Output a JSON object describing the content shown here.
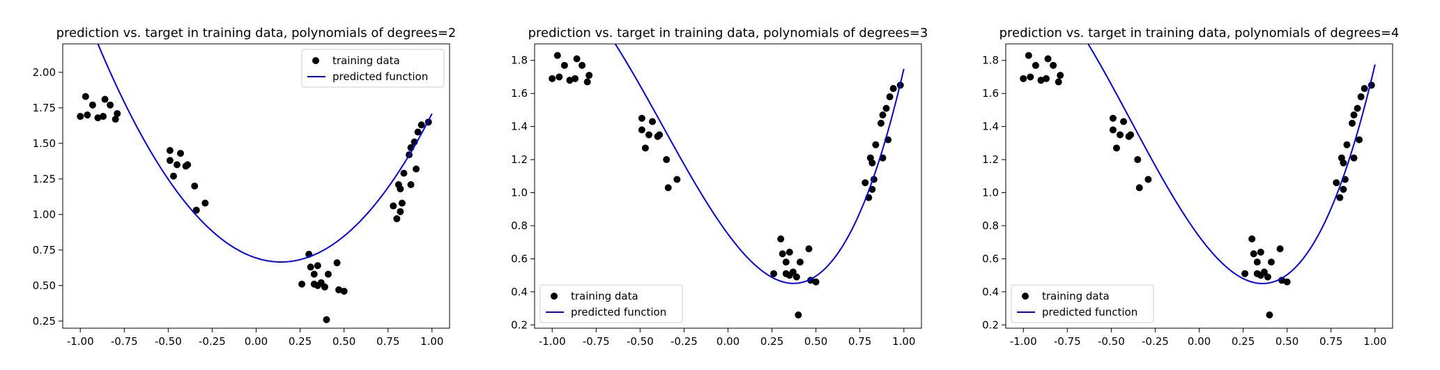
{
  "figure": {
    "colors": {
      "points": "#000000",
      "curve": "#0000ff",
      "axes": "#000000",
      "legend_frame": "#cccccc"
    }
  },
  "chart_data": [
    {
      "type": "scatter",
      "title": "prediction vs. target in training data,  polynomials of degrees=2",
      "xlabel": "",
      "ylabel": "",
      "xlim": [
        -1.1,
        1.1
      ],
      "ylim": [
        0.2,
        2.2
      ],
      "xticks": [
        "-1.00",
        "-0.75",
        "-0.50",
        "-0.25",
        "0.00",
        "0.25",
        "0.50",
        "0.75",
        "1.00"
      ],
      "xtick_values": [
        -1.0,
        -0.75,
        -0.5,
        -0.25,
        0.0,
        0.25,
        0.5,
        0.75,
        1.0
      ],
      "yticks": [
        "0.25",
        "0.50",
        "0.75",
        "1.00",
        "1.25",
        "1.50",
        "1.75",
        "2.00"
      ],
      "ytick_values": [
        0.25,
        0.5,
        0.75,
        1.0,
        1.25,
        1.5,
        1.75,
        2.0
      ],
      "legend_position": "upper right",
      "series": [
        {
          "name": "training data",
          "kind": "scatter",
          "points": [
            [
              -1.0,
              1.69
            ],
            [
              -0.97,
              1.83
            ],
            [
              -0.96,
              1.7
            ],
            [
              -0.93,
              1.77
            ],
            [
              -0.9,
              1.68
            ],
            [
              -0.87,
              1.69
            ],
            [
              -0.86,
              1.81
            ],
            [
              -0.83,
              1.77
            ],
            [
              -0.8,
              1.67
            ],
            [
              -0.79,
              1.71
            ],
            [
              -0.49,
              1.45
            ],
            [
              -0.49,
              1.38
            ],
            [
              -0.47,
              1.27
            ],
            [
              -0.45,
              1.35
            ],
            [
              -0.43,
              1.43
            ],
            [
              -0.4,
              1.34
            ],
            [
              -0.39,
              1.35
            ],
            [
              -0.35,
              1.2
            ],
            [
              -0.34,
              1.03
            ],
            [
              -0.29,
              1.08
            ],
            [
              0.26,
              0.51
            ],
            [
              0.3,
              0.72
            ],
            [
              0.31,
              0.63
            ],
            [
              0.33,
              0.58
            ],
            [
              0.33,
              0.51
            ],
            [
              0.35,
              0.5
            ],
            [
              0.35,
              0.64
            ],
            [
              0.37,
              0.52
            ],
            [
              0.39,
              0.49
            ],
            [
              0.4,
              0.26
            ],
            [
              0.41,
              0.58
            ],
            [
              0.46,
              0.66
            ],
            [
              0.47,
              0.47
            ],
            [
              0.5,
              0.46
            ],
            [
              0.78,
              1.06
            ],
            [
              0.8,
              0.97
            ],
            [
              0.81,
              1.21
            ],
            [
              0.82,
              1.02
            ],
            [
              0.82,
              1.18
            ],
            [
              0.83,
              1.08
            ],
            [
              0.84,
              1.29
            ],
            [
              0.87,
              1.42
            ],
            [
              0.88,
              1.21
            ],
            [
              0.88,
              1.47
            ],
            [
              0.9,
              1.51
            ],
            [
              0.91,
              1.32
            ],
            [
              0.92,
              1.58
            ],
            [
              0.94,
              1.63
            ],
            [
              0.98,
              1.65
            ]
          ]
        },
        {
          "name": "predicted function",
          "kind": "line",
          "coef": [
            0.694,
            -0.4,
            1.415
          ]
        }
      ]
    },
    {
      "type": "scatter",
      "title": "prediction vs. target in training data,  polynomials of degrees=3",
      "xlabel": "",
      "ylabel": "",
      "xlim": [
        -1.1,
        1.1
      ],
      "ylim": [
        0.18,
        1.9
      ],
      "xticks": [
        "-1.00",
        "-0.75",
        "-0.50",
        "-0.25",
        "0.00",
        "0.25",
        "0.50",
        "0.75",
        "1.00"
      ],
      "xtick_values": [
        -1.0,
        -0.75,
        -0.5,
        -0.25,
        0.0,
        0.25,
        0.5,
        0.75,
        1.0
      ],
      "yticks": [
        "0.2",
        "0.4",
        "0.6",
        "0.8",
        "1.0",
        "1.2",
        "1.4",
        "1.6",
        "1.8"
      ],
      "ytick_values": [
        0.2,
        0.4,
        0.6,
        0.8,
        1.0,
        1.2,
        1.4,
        1.6,
        1.8
      ],
      "legend_position": "lower left",
      "series": [
        {
          "name": "training data",
          "kind": "scatter",
          "points": [
            [
              -1.0,
              1.69
            ],
            [
              -0.97,
              1.83
            ],
            [
              -0.96,
              1.7
            ],
            [
              -0.93,
              1.77
            ],
            [
              -0.9,
              1.68
            ],
            [
              -0.87,
              1.69
            ],
            [
              -0.86,
              1.81
            ],
            [
              -0.83,
              1.77
            ],
            [
              -0.8,
              1.67
            ],
            [
              -0.79,
              1.71
            ],
            [
              -0.49,
              1.45
            ],
            [
              -0.49,
              1.38
            ],
            [
              -0.47,
              1.27
            ],
            [
              -0.45,
              1.35
            ],
            [
              -0.43,
              1.43
            ],
            [
              -0.4,
              1.34
            ],
            [
              -0.39,
              1.35
            ],
            [
              -0.35,
              1.2
            ],
            [
              -0.34,
              1.03
            ],
            [
              -0.29,
              1.08
            ],
            [
              0.26,
              0.51
            ],
            [
              0.3,
              0.72
            ],
            [
              0.31,
              0.63
            ],
            [
              0.33,
              0.58
            ],
            [
              0.33,
              0.51
            ],
            [
              0.35,
              0.5
            ],
            [
              0.35,
              0.64
            ],
            [
              0.37,
              0.52
            ],
            [
              0.39,
              0.49
            ],
            [
              0.4,
              0.26
            ],
            [
              0.41,
              0.58
            ],
            [
              0.46,
              0.66
            ],
            [
              0.47,
              0.47
            ],
            [
              0.5,
              0.46
            ],
            [
              0.78,
              1.06
            ],
            [
              0.8,
              0.97
            ],
            [
              0.81,
              1.21
            ],
            [
              0.82,
              1.02
            ],
            [
              0.82,
              1.18
            ],
            [
              0.83,
              1.08
            ],
            [
              0.84,
              1.29
            ],
            [
              0.87,
              1.42
            ],
            [
              0.88,
              1.21
            ],
            [
              0.88,
              1.47
            ],
            [
              0.9,
              1.51
            ],
            [
              0.91,
              1.32
            ],
            [
              0.92,
              1.58
            ],
            [
              0.94,
              1.63
            ],
            [
              0.98,
              1.65
            ]
          ]
        },
        {
          "name": "predicted function",
          "kind": "line",
          "coef": [
            0.749,
            -1.44,
            1.29,
            1.15
          ]
        }
      ]
    },
    {
      "type": "scatter",
      "title": "prediction vs. target in training data,  polynomials of degrees=4",
      "xlabel": "",
      "ylabel": "",
      "xlim": [
        -1.1,
        1.1
      ],
      "ylim": [
        0.18,
        1.9
      ],
      "xticks": [
        "-1.00",
        "-0.75",
        "-0.50",
        "-0.25",
        "0.00",
        "0.25",
        "0.50",
        "0.75",
        "1.00"
      ],
      "xtick_values": [
        -1.0,
        -0.75,
        -0.5,
        -0.25,
        0.0,
        0.25,
        0.5,
        0.75,
        1.0
      ],
      "yticks": [
        "0.2",
        "0.4",
        "0.6",
        "0.8",
        "1.0",
        "1.2",
        "1.4",
        "1.6",
        "1.8"
      ],
      "ytick_values": [
        0.2,
        0.4,
        0.6,
        0.8,
        1.0,
        1.2,
        1.4,
        1.6,
        1.8
      ],
      "legend_position": "lower left",
      "series": [
        {
          "name": "training data",
          "kind": "scatter",
          "points": [
            [
              -1.0,
              1.69
            ],
            [
              -0.97,
              1.83
            ],
            [
              -0.96,
              1.7
            ],
            [
              -0.93,
              1.77
            ],
            [
              -0.9,
              1.68
            ],
            [
              -0.87,
              1.69
            ],
            [
              -0.86,
              1.81
            ],
            [
              -0.83,
              1.77
            ],
            [
              -0.8,
              1.67
            ],
            [
              -0.79,
              1.71
            ],
            [
              -0.49,
              1.45
            ],
            [
              -0.49,
              1.38
            ],
            [
              -0.47,
              1.27
            ],
            [
              -0.45,
              1.35
            ],
            [
              -0.43,
              1.43
            ],
            [
              -0.4,
              1.34
            ],
            [
              -0.39,
              1.35
            ],
            [
              -0.35,
              1.2
            ],
            [
              -0.34,
              1.03
            ],
            [
              -0.29,
              1.08
            ],
            [
              0.26,
              0.51
            ],
            [
              0.3,
              0.72
            ],
            [
              0.31,
              0.63
            ],
            [
              0.33,
              0.58
            ],
            [
              0.33,
              0.51
            ],
            [
              0.35,
              0.5
            ],
            [
              0.35,
              0.64
            ],
            [
              0.37,
              0.52
            ],
            [
              0.39,
              0.49
            ],
            [
              0.4,
              0.26
            ],
            [
              0.41,
              0.58
            ],
            [
              0.46,
              0.66
            ],
            [
              0.47,
              0.47
            ],
            [
              0.5,
              0.46
            ],
            [
              0.78,
              1.06
            ],
            [
              0.8,
              0.97
            ],
            [
              0.81,
              1.21
            ],
            [
              0.82,
              1.02
            ],
            [
              0.82,
              1.18
            ],
            [
              0.83,
              1.08
            ],
            [
              0.84,
              1.29
            ],
            [
              0.87,
              1.42
            ],
            [
              0.88,
              1.21
            ],
            [
              0.88,
              1.47
            ],
            [
              0.9,
              1.51
            ],
            [
              0.91,
              1.32
            ],
            [
              0.92,
              1.58
            ],
            [
              0.94,
              1.63
            ],
            [
              0.98,
              1.65
            ]
          ]
        },
        {
          "name": "predicted function",
          "kind": "line",
          "coef": [
            0.735,
            -1.438,
            1.392,
            1.146,
            -0.06
          ]
        }
      ]
    }
  ]
}
